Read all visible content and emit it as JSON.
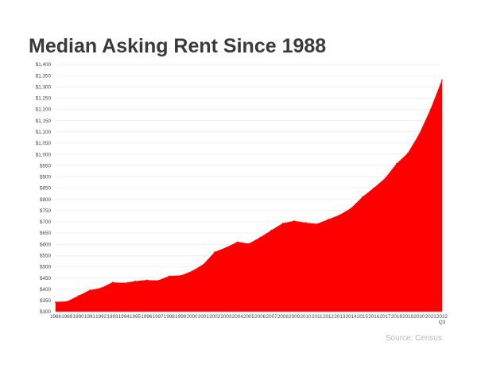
{
  "title": "Median Asking Rent Since 1988",
  "source": "Source: Census",
  "chart_data": {
    "type": "area",
    "title": "Median Asking Rent Since 1988",
    "xlabel": "",
    "ylabel": "",
    "grid": true,
    "legend": "none",
    "color": "#ff0000",
    "ylim": [
      300,
      1400
    ],
    "yticks": [
      "$300",
      "$350",
      "$400",
      "$450",
      "$500",
      "$550",
      "$600",
      "$650",
      "$700",
      "$750",
      "$800",
      "$850",
      "$900",
      "$950",
      "$1,000",
      "$1,050",
      "$1,100",
      "$1,150",
      "$1,200",
      "$1,250",
      "$1,300",
      "$1,350",
      "$1,400"
    ],
    "categories": [
      "1988",
      "1989",
      "1990",
      "1991",
      "1992",
      "1993",
      "1994",
      "1995",
      "1996",
      "1997",
      "1998",
      "1999",
      "2000",
      "2001",
      "2002",
      "2003",
      "2004",
      "2005",
      "2006",
      "2007",
      "2008",
      "2009",
      "2010",
      "2011",
      "2012",
      "2013",
      "2014",
      "2015",
      "2016",
      "2017",
      "2018",
      "2019",
      "2020",
      "2021",
      "2022 Q3"
    ],
    "category_lines": [
      [
        "1988"
      ],
      [
        "1989"
      ],
      [
        "1990"
      ],
      [
        "1991"
      ],
      [
        "1992"
      ],
      [
        "1993"
      ],
      [
        "1994"
      ],
      [
        "1995"
      ],
      [
        "1996"
      ],
      [
        "1997"
      ],
      [
        "1998"
      ],
      [
        "1999"
      ],
      [
        "2000"
      ],
      [
        "2001"
      ],
      [
        "2002"
      ],
      [
        "2003"
      ],
      [
        "2004"
      ],
      [
        "2005"
      ],
      [
        "2006"
      ],
      [
        "2007"
      ],
      [
        "2008"
      ],
      [
        "2009"
      ],
      [
        "2010"
      ],
      [
        "2011"
      ],
      [
        "2012"
      ],
      [
        "2013"
      ],
      [
        "2014"
      ],
      [
        "2015"
      ],
      [
        "2016"
      ],
      [
        "2017"
      ],
      [
        "2018"
      ],
      [
        "2019"
      ],
      [
        "2020"
      ],
      [
        "2021"
      ],
      [
        "2022",
        "Q3"
      ]
    ],
    "values": [
      343,
      345,
      370,
      395,
      405,
      430,
      427,
      435,
      440,
      438,
      458,
      460,
      480,
      510,
      565,
      585,
      610,
      602,
      630,
      662,
      693,
      703,
      695,
      690,
      710,
      730,
      760,
      810,
      850,
      893,
      958,
      1005,
      1090,
      1200,
      1330
    ]
  }
}
